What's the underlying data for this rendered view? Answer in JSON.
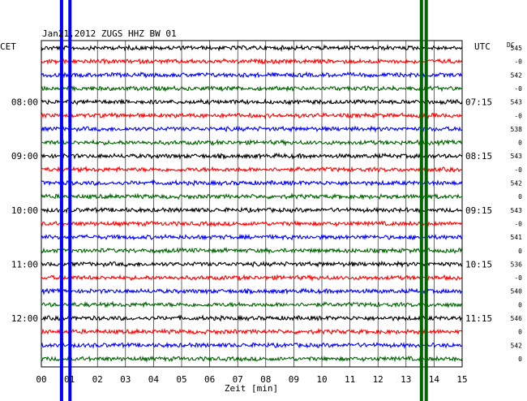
{
  "header": {
    "title": "Jan21,2012   ZUGS HHZ BW 01"
  },
  "left_axis": {
    "label": "CET",
    "hours": [
      "08:00",
      "09:00",
      "10:00",
      "11:00",
      "12:00"
    ]
  },
  "right_axis": {
    "label": "UTC",
    "hours": [
      "07:15",
      "08:15",
      "09:15",
      "10:15",
      "11:15"
    ]
  },
  "dc": {
    "label": "DC",
    "values": [
      "545",
      "-0",
      "542",
      "-0",
      "543",
      "-0",
      "538",
      "0",
      "543",
      "-0",
      "542",
      "0",
      "543",
      "-0",
      "541",
      "0",
      "536",
      "-0",
      "540",
      "0",
      "546",
      "0",
      "542",
      "0"
    ]
  },
  "x_axis": {
    "ticks": [
      "00",
      "01",
      "02",
      "03",
      "04",
      "05",
      "06",
      "07",
      "08",
      "09",
      "10",
      "11",
      "12",
      "13",
      "14",
      "15"
    ],
    "label": "Zeit [min]"
  },
  "chart_data": {
    "type": "line",
    "title": "Jan21,2012   ZUGS HHZ BW 01",
    "xlabel": "Zeit [min]",
    "ylabel": "",
    "xlim": [
      0,
      15
    ],
    "rows_per_hour": 4,
    "trace_colors": [
      "#000000",
      "#ff0000",
      "#0000ff",
      "#006400"
    ],
    "traces": 24,
    "grid": true,
    "events": [
      {
        "name": "",
        "x_min": 0.72,
        "color": "#0000ff",
        "from_trace": 0,
        "to_trace": 24
      },
      {
        "name": "",
        "x_min": 1.02,
        "color": "#0000ff",
        "from_trace": 0,
        "to_trace": 24
      },
      {
        "name": "",
        "x_min": 13.55,
        "color": "#006400",
        "from_trace": 0,
        "to_trace": 24
      },
      {
        "name": "",
        "x_min": 13.72,
        "color": "#006400",
        "from_trace": 0,
        "to_trace": 24
      }
    ]
  }
}
